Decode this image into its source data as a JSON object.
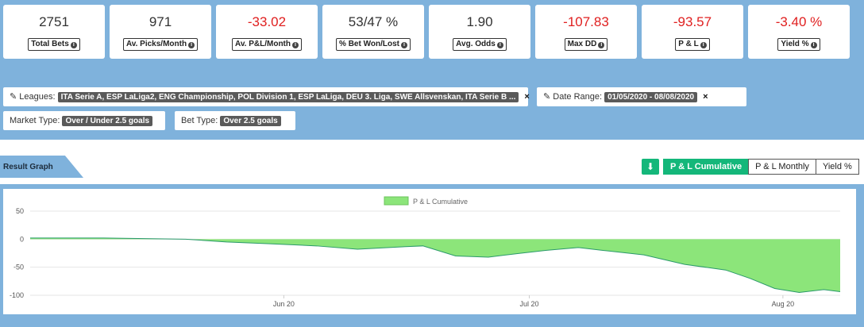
{
  "stats": [
    {
      "value": "2751",
      "label": "Total Bets",
      "negative": false
    },
    {
      "value": "971",
      "label": "Av. Picks/Month",
      "negative": false
    },
    {
      "value": "-33.02",
      "label": "Av. P&L/Month",
      "negative": true
    },
    {
      "value": "53/47 %",
      "label": "% Bet Won/Lost",
      "negative": false
    },
    {
      "value": "1.90",
      "label": "Avg. Odds",
      "negative": false
    },
    {
      "value": "-107.83",
      "label": "Max DD",
      "negative": true
    },
    {
      "value": "-93.57",
      "label": "P & L",
      "negative": true
    },
    {
      "value": "-3.40 %",
      "label": "Yield %",
      "negative": true
    }
  ],
  "filters": {
    "leagues_label": "Leagues:",
    "leagues_value": "ITA Serie A, ESP LaLiga2, ENG Championship, POL Division 1, ESP LaLiga, DEU 3. Liga, SWE Allsvenskan, ITA Serie B ...",
    "date_label": "Date Range:",
    "date_value": "01/05/2020 - 08/08/2020",
    "market_label": "Market Type:",
    "market_value": "Over / Under 2.5 goals",
    "bet_label": "Bet Type:",
    "bet_value": "Over 2.5 goals",
    "clear_glyph": "×"
  },
  "result_graph": {
    "tab_label": "Result Graph",
    "buttons": [
      "P & L Cumulative",
      "P & L Monthly",
      "Yield %"
    ],
    "active": "P & L Cumulative"
  },
  "chart_data": {
    "type": "area",
    "legend": "P & L Cumulative",
    "series_color": "#8ce57a",
    "line_color": "#2a9a6a",
    "ylim": [
      -100,
      50
    ],
    "yticks": [
      50,
      0,
      -50,
      -100
    ],
    "xtick_labels": [
      "Jun 20",
      "Jul 20",
      "Aug 20"
    ],
    "x": [
      "2020-05-01",
      "2020-05-10",
      "2020-05-20",
      "2020-05-25",
      "2020-05-30",
      "2020-06-05",
      "2020-06-10",
      "2020-06-15",
      "2020-06-18",
      "2020-06-22",
      "2020-06-26",
      "2020-06-30",
      "2020-07-03",
      "2020-07-07",
      "2020-07-10",
      "2020-07-15",
      "2020-07-20",
      "2020-07-25",
      "2020-07-28",
      "2020-07-31",
      "2020-08-03",
      "2020-08-06",
      "2020-08-08"
    ],
    "values": [
      2,
      2,
      0,
      -5,
      -8,
      -12,
      -18,
      -14,
      -12,
      -30,
      -32,
      -25,
      -20,
      -15,
      -20,
      -28,
      -45,
      -55,
      -70,
      -88,
      -95,
      -90,
      -93.57
    ]
  }
}
